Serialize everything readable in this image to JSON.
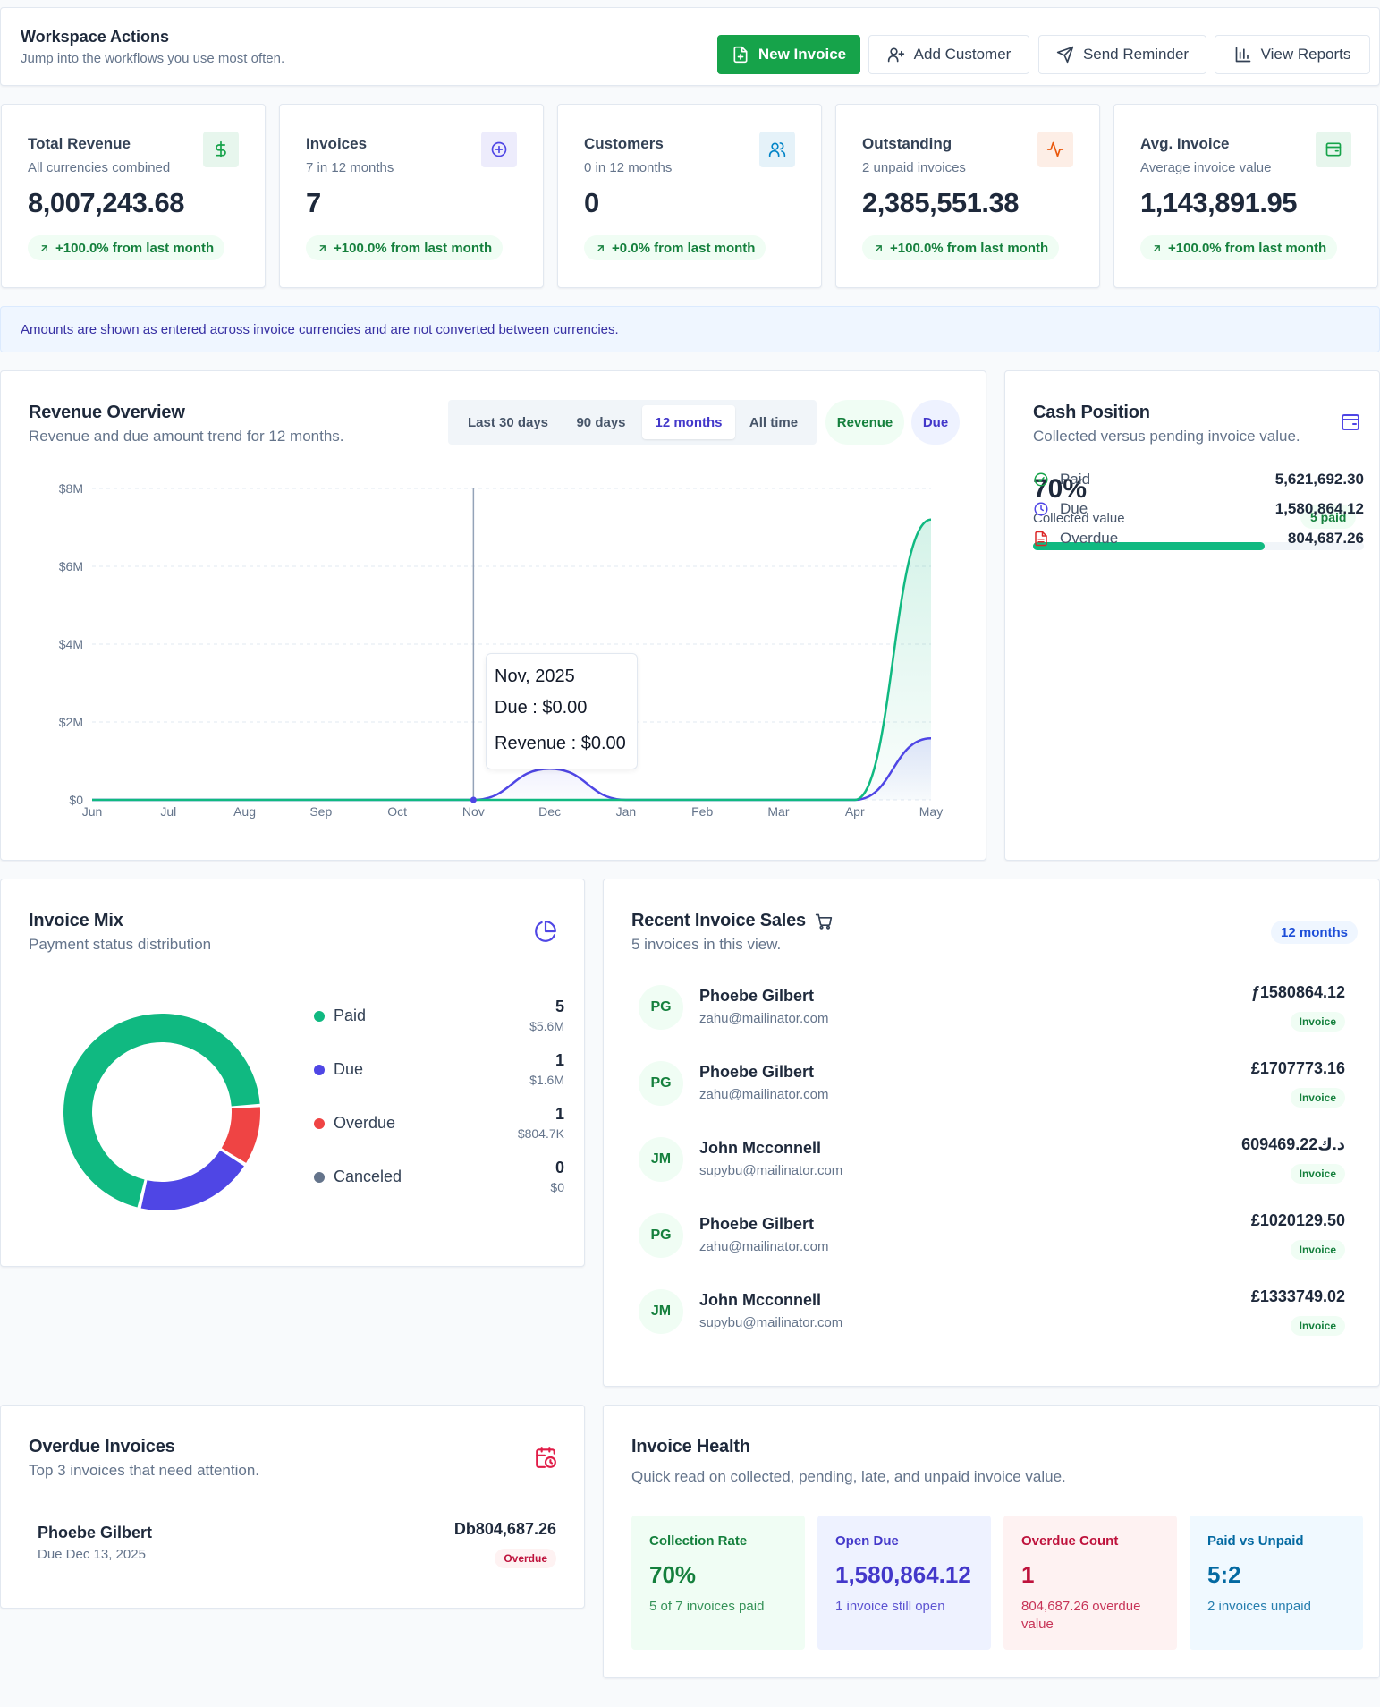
{
  "actions": {
    "title": "Workspace Actions",
    "subtitle": "Jump into the workflows you use most often.",
    "new_invoice": "New Invoice",
    "add_customer": "Add Customer",
    "send_reminder": "Send Reminder",
    "view_reports": "View Reports"
  },
  "kpis": [
    {
      "title": "Total Revenue",
      "sub": "All currencies combined",
      "value": "8,007,243.68",
      "change": "+100.0% from last month",
      "icon": "dollar-icon",
      "color": "#16a34a"
    },
    {
      "title": "Invoices",
      "sub": "7 in 12 months",
      "value": "7",
      "change": "+100.0% from last month",
      "icon": "plus-circle-icon",
      "color": "#4f46e5"
    },
    {
      "title": "Customers",
      "sub": "0 in 12 months",
      "value": "0",
      "change": "+0.0% from last month",
      "icon": "users-icon",
      "color": "#0284c7"
    },
    {
      "title": "Outstanding",
      "sub": "2 unpaid invoices",
      "value": "2,385,551.38",
      "change": "+100.0% from last month",
      "icon": "activity-icon",
      "color": "#ea580c"
    },
    {
      "title": "Avg. Invoice",
      "sub": "Average invoice value",
      "value": "1,143,891.95",
      "change": "+100.0% from last month",
      "icon": "wallet-icon",
      "color": "#16a34a"
    }
  ],
  "notice": "Amounts are shown as entered across invoice currencies and are not converted between currencies.",
  "revenue": {
    "title": "Revenue Overview",
    "subtitle": "Revenue and due amount trend for 12 months.",
    "ranges": [
      "Last 30 days",
      "90 days",
      "12 months",
      "All time"
    ],
    "selected_range": "12 months",
    "toggles": [
      "Revenue",
      "Due"
    ],
    "tooltip": {
      "title": "Nov, 2025",
      "due": "Due : $0.00",
      "revenue": "Revenue : $0.00"
    }
  },
  "chart_data": {
    "type": "area",
    "categories": [
      "Jun",
      "Jul",
      "Aug",
      "Sep",
      "Oct",
      "Nov",
      "Dec",
      "Jan",
      "Feb",
      "Mar",
      "Apr",
      "May"
    ],
    "y_tick_labels": [
      "$0",
      "$2M",
      "$4M",
      "$6M",
      "$8M"
    ],
    "ylim": [
      0,
      8000000
    ],
    "grid": true,
    "series": [
      {
        "name": "Revenue",
        "color": "#10b981",
        "values": [
          0,
          0,
          0,
          0,
          0,
          0,
          0,
          0,
          0,
          0,
          0,
          7200000
        ]
      },
      {
        "name": "Due",
        "color": "#4f46e5",
        "values": [
          0,
          0,
          0,
          0,
          0,
          0,
          800000,
          0,
          0,
          0,
          0,
          1580864
        ]
      }
    ]
  },
  "cash": {
    "title": "Cash Position",
    "subtitle": "Collected versus pending invoice value.",
    "percent": "70%",
    "percent_value": 0.7,
    "collected_label": "Collected value",
    "paid_badge": "5 paid",
    "rows": [
      {
        "label": "Paid",
        "value": "5,621,692.30",
        "icon": "check-circle-icon",
        "color": "#16a34a"
      },
      {
        "label": "Due",
        "value": "1,580,864.12",
        "icon": "clock-icon",
        "color": "#4f46e5"
      },
      {
        "label": "Overdue",
        "value": "804,687.26",
        "icon": "file-icon",
        "color": "#dc2626"
      }
    ]
  },
  "mix": {
    "title": "Invoice Mix",
    "subtitle": "Payment status distribution",
    "items": [
      {
        "label": "Paid",
        "count": "5",
        "amount": "$5.6M",
        "color": "#10b981",
        "share": 0.7026
      },
      {
        "label": "Due",
        "count": "1",
        "amount": "$1.6M",
        "color": "#4f46e5",
        "share": 0.1976
      },
      {
        "label": "Overdue",
        "count": "1",
        "amount": "$804.7K",
        "color": "#ef4444",
        "share": 0.1006
      },
      {
        "label": "Canceled",
        "count": "0",
        "amount": "$0",
        "color": "#64748b",
        "share": 0
      }
    ]
  },
  "recent": {
    "title": "Recent Invoice Sales",
    "subtitle": "5 invoices in this view.",
    "range_badge": "12 months",
    "rows": [
      {
        "initials": "PG",
        "name": "Phoebe Gilbert",
        "email": "zahu@mailinator.com",
        "amount": "ƒ1580864.12",
        "tag": "Invoice"
      },
      {
        "initials": "PG",
        "name": "Phoebe Gilbert",
        "email": "zahu@mailinator.com",
        "amount": "£1707773.16",
        "tag": "Invoice"
      },
      {
        "initials": "JM",
        "name": "John Mcconnell",
        "email": "supybu@mailinator.com",
        "amount": "609469.22د.ك",
        "tag": "Invoice"
      },
      {
        "initials": "PG",
        "name": "Phoebe Gilbert",
        "email": "zahu@mailinator.com",
        "amount": "£1020129.50",
        "tag": "Invoice"
      },
      {
        "initials": "JM",
        "name": "John Mcconnell",
        "email": "supybu@mailinator.com",
        "amount": "£1333749.02",
        "tag": "Invoice"
      }
    ]
  },
  "overdue": {
    "title": "Overdue Invoices",
    "subtitle": "Top 3 invoices that need attention.",
    "rows": [
      {
        "name": "Phoebe Gilbert",
        "due": "Due Dec 13, 2025",
        "amount": "Db804,687.26",
        "tag": "Overdue"
      }
    ]
  },
  "health": {
    "title": "Invoice Health",
    "subtitle": "Quick read on collected, pending, late, and unpaid invoice value.",
    "cards": [
      {
        "label": "Collection Rate",
        "value": "70%",
        "sub": "5 of 7 invoices paid",
        "bg": "#f0fdf4",
        "fg": "#15803d"
      },
      {
        "label": "Open Due",
        "value": "1,580,864.12",
        "sub": "1 invoice still open",
        "bg": "#eef2ff",
        "fg": "#4338ca"
      },
      {
        "label": "Overdue Count",
        "value": "1",
        "sub": "804,687.26 overdue value",
        "bg": "#fef2f2",
        "fg": "#be123c"
      },
      {
        "label": "Paid vs Unpaid",
        "value": "5:2",
        "sub": "2 invoices unpaid",
        "bg": "#f0f9ff",
        "fg": "#0369a1"
      }
    ]
  }
}
